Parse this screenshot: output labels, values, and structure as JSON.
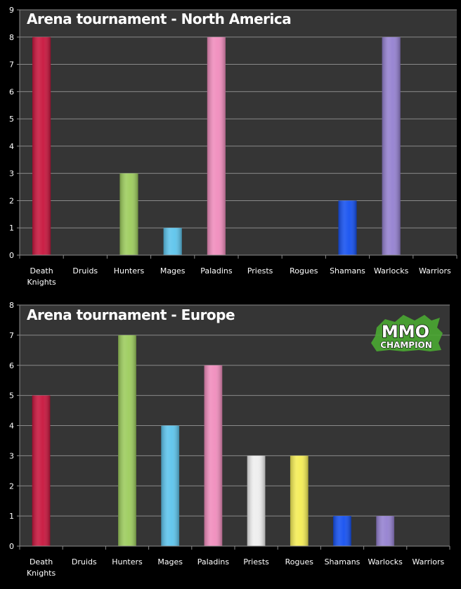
{
  "chart_data": [
    {
      "type": "bar",
      "title": "Arena tournament - North America",
      "categories": [
        [
          "Death",
          "Knights"
        ],
        [
          "Druids"
        ],
        [
          "Hunters"
        ],
        [
          "Mages"
        ],
        [
          "Paladins"
        ],
        [
          "Priests"
        ],
        [
          "Rogues"
        ],
        [
          "Shamans"
        ],
        [
          "Warlocks"
        ],
        [
          "Warriors"
        ]
      ],
      "values": [
        8,
        0,
        3,
        1,
        8,
        0,
        0,
        2,
        8,
        0
      ],
      "colors": [
        "#c8143c",
        "#000000",
        "#9ccc5c",
        "#5cc4ec",
        "#f08cbc",
        "#eeeeee",
        "#f4ec54",
        "#1450f0",
        "#9480d0",
        "#888888"
      ],
      "ylim": [
        0,
        9
      ],
      "yticks": [
        0,
        1,
        2,
        3,
        4,
        5,
        6,
        7,
        8,
        9
      ],
      "grid": true,
      "background": "#353535"
    },
    {
      "type": "bar",
      "title": "Arena tournament - Europe",
      "categories": [
        [
          "Death",
          "Knights"
        ],
        [
          "Druids"
        ],
        [
          "Hunters"
        ],
        [
          "Mages"
        ],
        [
          "Paladins"
        ],
        [
          "Priests"
        ],
        [
          "Rogues"
        ],
        [
          "Shamans"
        ],
        [
          "Warlocks"
        ],
        [
          "Warriors"
        ]
      ],
      "values": [
        5,
        0,
        7,
        4,
        6,
        3,
        3,
        1,
        1,
        0
      ],
      "colors": [
        "#c8143c",
        "#000000",
        "#9ccc5c",
        "#5cc4ec",
        "#f08cbc",
        "#eeeeee",
        "#f4ec54",
        "#1450f0",
        "#9480d0",
        "#888888"
      ],
      "ylim": [
        0,
        8
      ],
      "yticks": [
        0,
        1,
        2,
        3,
        4,
        5,
        6,
        7,
        8
      ],
      "grid": true,
      "background": "#353535"
    }
  ],
  "logo": {
    "text_top": "MMO",
    "text_bottom": "CHAMPION",
    "color": "#4aa832"
  }
}
